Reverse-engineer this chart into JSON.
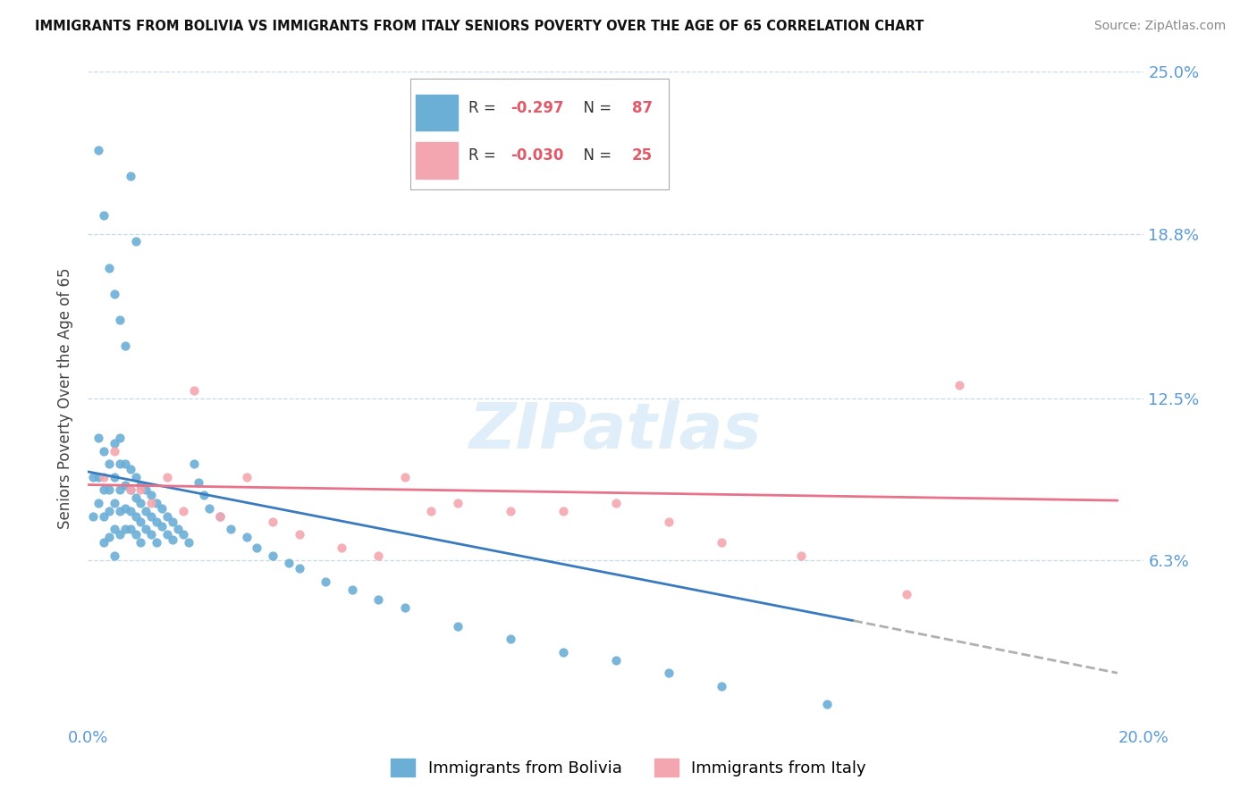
{
  "title": "IMMIGRANTS FROM BOLIVIA VS IMMIGRANTS FROM ITALY SENIORS POVERTY OVER THE AGE OF 65 CORRELATION CHART",
  "source": "Source: ZipAtlas.com",
  "ylabel": "Seniors Poverty Over the Age of 65",
  "xlim": [
    0.0,
    0.2
  ],
  "ylim": [
    0.0,
    0.25
  ],
  "ytick_vals": [
    0.0,
    0.063,
    0.125,
    0.188,
    0.25
  ],
  "ytick_labels_right": [
    "",
    "6.3%",
    "12.5%",
    "18.8%",
    "25.0%"
  ],
  "xtick_vals": [
    0.0,
    0.05,
    0.1,
    0.15,
    0.2
  ],
  "xtick_labels": [
    "0.0%",
    "",
    "",
    "",
    "20.0%"
  ],
  "legend_R_bolivia": "-0.297",
  "legend_N_bolivia": "87",
  "legend_R_italy": "-0.030",
  "legend_N_italy": "25",
  "color_bolivia": "#6baed6",
  "color_italy": "#f4a6b0",
  "trendline_bolivia_color": "#3a7abf",
  "trendline_italy_color": "#e8728a",
  "trendline_ext_color": "#b0b0b0",
  "watermark": "ZIPatlas",
  "bolivia_x": [
    0.001,
    0.001,
    0.002,
    0.002,
    0.002,
    0.003,
    0.003,
    0.003,
    0.003,
    0.004,
    0.004,
    0.004,
    0.004,
    0.005,
    0.005,
    0.005,
    0.005,
    0.005,
    0.006,
    0.006,
    0.006,
    0.006,
    0.006,
    0.007,
    0.007,
    0.007,
    0.007,
    0.008,
    0.008,
    0.008,
    0.008,
    0.009,
    0.009,
    0.009,
    0.009,
    0.01,
    0.01,
    0.01,
    0.01,
    0.011,
    0.011,
    0.011,
    0.012,
    0.012,
    0.012,
    0.013,
    0.013,
    0.013,
    0.014,
    0.014,
    0.015,
    0.015,
    0.016,
    0.016,
    0.017,
    0.018,
    0.019,
    0.02,
    0.021,
    0.022,
    0.023,
    0.025,
    0.027,
    0.03,
    0.032,
    0.035,
    0.038,
    0.04,
    0.045,
    0.05,
    0.055,
    0.06,
    0.07,
    0.08,
    0.09,
    0.1,
    0.11,
    0.12,
    0.14,
    0.002,
    0.003,
    0.004,
    0.005,
    0.006,
    0.007,
    0.008,
    0.009
  ],
  "bolivia_y": [
    0.095,
    0.08,
    0.11,
    0.095,
    0.085,
    0.105,
    0.09,
    0.08,
    0.07,
    0.1,
    0.09,
    0.082,
    0.072,
    0.108,
    0.095,
    0.085,
    0.075,
    0.065,
    0.11,
    0.1,
    0.09,
    0.082,
    0.073,
    0.1,
    0.092,
    0.083,
    0.075,
    0.098,
    0.09,
    0.082,
    0.075,
    0.095,
    0.087,
    0.08,
    0.073,
    0.092,
    0.085,
    0.078,
    0.07,
    0.09,
    0.082,
    0.075,
    0.088,
    0.08,
    0.073,
    0.085,
    0.078,
    0.07,
    0.083,
    0.076,
    0.08,
    0.073,
    0.078,
    0.071,
    0.075,
    0.073,
    0.07,
    0.1,
    0.093,
    0.088,
    0.083,
    0.08,
    0.075,
    0.072,
    0.068,
    0.065,
    0.062,
    0.06,
    0.055,
    0.052,
    0.048,
    0.045,
    0.038,
    0.033,
    0.028,
    0.025,
    0.02,
    0.015,
    0.008,
    0.22,
    0.195,
    0.175,
    0.165,
    0.155,
    0.145,
    0.21,
    0.185
  ],
  "italy_x": [
    0.003,
    0.005,
    0.008,
    0.01,
    0.012,
    0.015,
    0.018,
    0.02,
    0.025,
    0.03,
    0.035,
    0.04,
    0.048,
    0.055,
    0.06,
    0.065,
    0.07,
    0.08,
    0.09,
    0.1,
    0.11,
    0.12,
    0.135,
    0.155,
    0.165
  ],
  "italy_y": [
    0.095,
    0.105,
    0.09,
    0.09,
    0.085,
    0.095,
    0.082,
    0.128,
    0.08,
    0.095,
    0.078,
    0.073,
    0.068,
    0.065,
    0.095,
    0.082,
    0.085,
    0.082,
    0.082,
    0.085,
    0.078,
    0.07,
    0.065,
    0.05,
    0.13
  ],
  "trendline_bolivia_x0": 0.0,
  "trendline_bolivia_x1": 0.145,
  "trendline_bolivia_y0": 0.097,
  "trendline_bolivia_y1": 0.04,
  "trendline_ext_x0": 0.145,
  "trendline_ext_x1": 0.195,
  "trendline_ext_y0": 0.04,
  "trendline_ext_y1": 0.02,
  "trendline_italy_x0": 0.0,
  "trendline_italy_x1": 0.195,
  "trendline_italy_y0": 0.092,
  "trendline_italy_y1": 0.086
}
